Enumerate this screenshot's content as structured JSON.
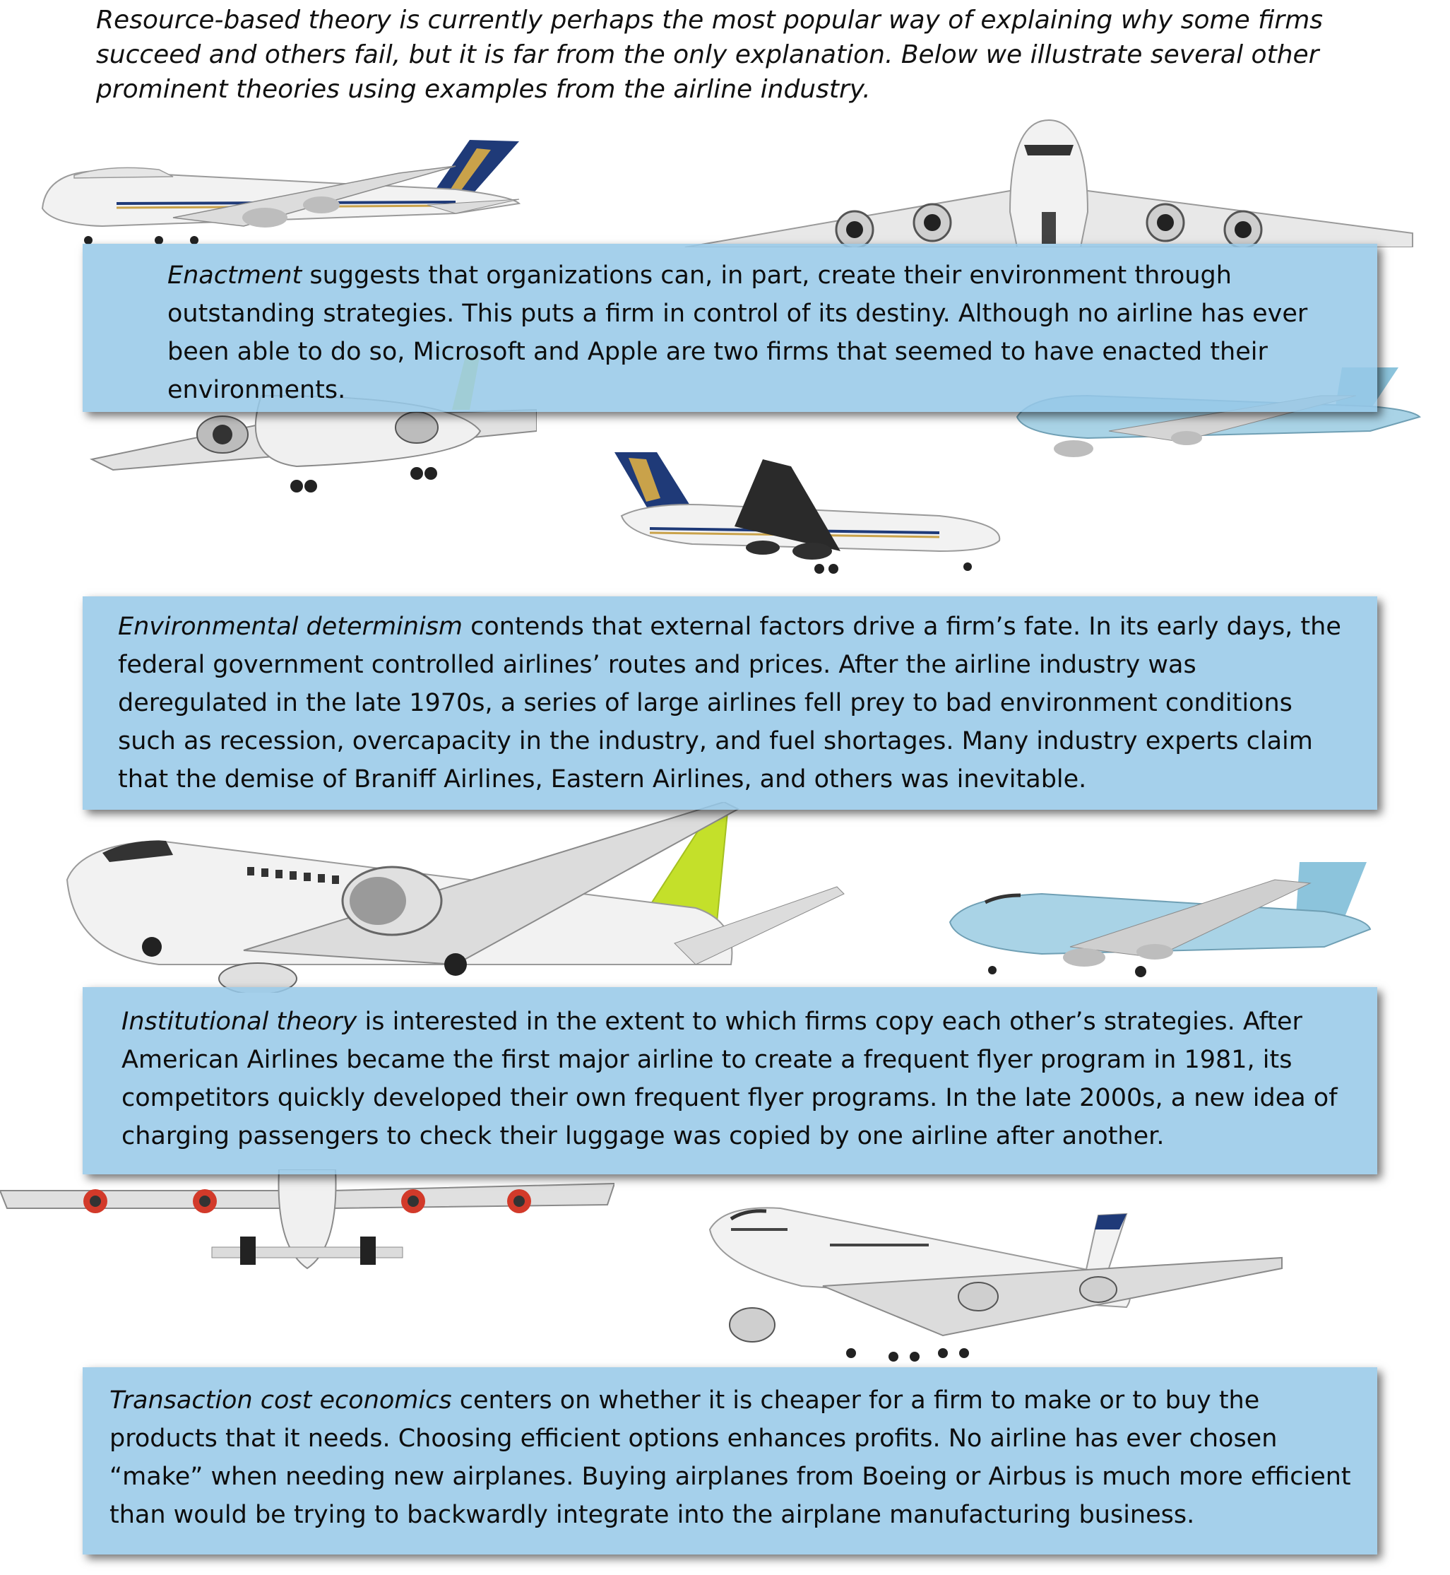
{
  "intro": "Resource-based theory is currently perhaps the most popular way of explaining why some firms succeed and others fail, but it is far from the only explanation. Below we illustrate several other prominent theories using examples from the airline industry.",
  "theories": [
    {
      "term": "Enactment",
      "text": " suggests that organizations can, in part, create their environment through outstanding strategies. This puts a firm in control of its destiny. Although no airline has ever been able to do so, Microsoft and Apple are two firms that seemed to have enacted their environments."
    },
    {
      "term": "Environmental determinism",
      "text": " contends that external factors drive a firm’s fate. In its early days, the federal government controlled airlines’ routes and prices. After the airline industry was deregulated in the late 1970s, a series of large airlines fell prey to bad environment conditions such as recession, overcapacity in the industry, and fuel shortages. Many industry experts claim that the demise of Braniff Airlines, Eastern Airlines, and others was inevitable."
    },
    {
      "term": "Institutional theory",
      "text": " is interested in the extent to which firms copy each other’s strategies. After American Airlines became the first major airline to create a frequent flyer program in 1981, its competitors quickly developed their own frequent flyer programs. In the late 2000s, a new idea of charging passengers to check their luggage was copied by one airline after another."
    },
    {
      "term": "Transaction cost economics",
      "text": " centers on whether it is cheaper for a firm to make or to buy the products that it needs. Choosing efficient options enhances profits. No airline has ever chosen “make” when needing new airplanes. Buying airplanes from Boeing or Airbus is much more efficient than would be trying to backwardly integrate into the airplane manufacturing business."
    }
  ],
  "colors": {
    "box_fill": "#96c8e8",
    "tail_navy": "#1f3a78",
    "tail_green": "#c4e02a",
    "tail_blue": "#8cc4dc",
    "plane_white": "#f2f2f2"
  }
}
